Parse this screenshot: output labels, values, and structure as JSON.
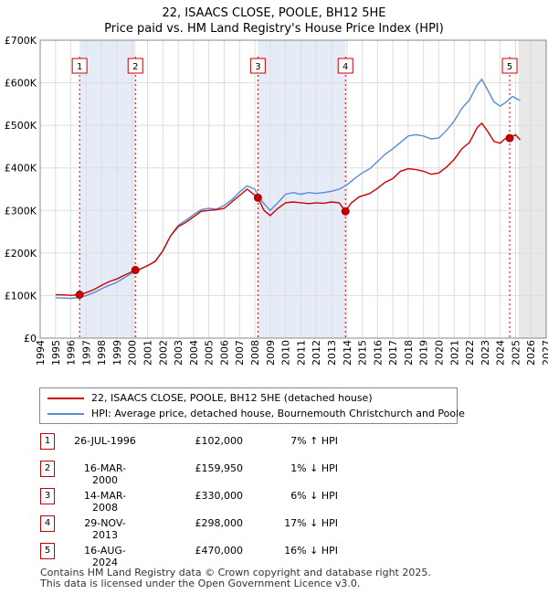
{
  "title": "22, ISAACS CLOSE, POOLE, BH12 5HE",
  "subtitle": "Price paid vs. HM Land Registry's House Price Index (HPI)",
  "chart_data": {
    "type": "line",
    "title": "22, ISAACS CLOSE, POOLE, BH12 5HE",
    "subtitle": "Price paid vs. HM Land Registry's House Price Index (HPI)",
    "xlim": [
      1994,
      2027
    ],
    "ylim": [
      0,
      700000
    ],
    "x_ticks": [
      "1994",
      "1995",
      "1996",
      "1997",
      "1998",
      "1999",
      "2000",
      "2001",
      "2002",
      "2003",
      "2004",
      "2005",
      "2006",
      "2007",
      "2008",
      "2009",
      "2010",
      "2011",
      "2012",
      "2013",
      "2014",
      "2015",
      "2016",
      "2017",
      "2018",
      "2019",
      "2020",
      "2021",
      "2022",
      "2023",
      "2024",
      "2025",
      "2026",
      "2027"
    ],
    "y_ticks": [
      {
        "value": 0,
        "label": "£0"
      },
      {
        "value": 100000,
        "label": "£100K"
      },
      {
        "value": 200000,
        "label": "£200K"
      },
      {
        "value": 300000,
        "label": "£300K"
      },
      {
        "value": 400000,
        "label": "£400K"
      },
      {
        "value": 500000,
        "label": "£500K"
      },
      {
        "value": 600000,
        "label": "£600K"
      },
      {
        "value": 700000,
        "label": "£700K"
      }
    ],
    "grid": true,
    "legend_position": "below",
    "shaded_periods": [
      [
        1996.57,
        2000.21
      ],
      [
        2008.2,
        2013.91
      ]
    ],
    "forecast_from": 2025.2,
    "series": [
      {
        "name": "22, ISAACS CLOSE, POOLE, BH12 5HE (detached house)",
        "color": "#cc0000",
        "points": [
          [
            1995.0,
            102000
          ],
          [
            1995.5,
            101500
          ],
          [
            1996.0,
            100500
          ],
          [
            1996.57,
            102000
          ],
          [
            1997.0,
            107000
          ],
          [
            1997.5,
            114000
          ],
          [
            1998.0,
            124000
          ],
          [
            1998.5,
            133000
          ],
          [
            1999.0,
            139000
          ],
          [
            1999.5,
            148000
          ],
          [
            2000.21,
            159950
          ],
          [
            2000.5,
            162000
          ],
          [
            2001.0,
            170000
          ],
          [
            2001.5,
            180000
          ],
          [
            2002.0,
            205000
          ],
          [
            2002.5,
            240000
          ],
          [
            2003.0,
            262000
          ],
          [
            2003.5,
            272000
          ],
          [
            2004.0,
            285000
          ],
          [
            2004.5,
            298000
          ],
          [
            2005.0,
            300000
          ],
          [
            2005.5,
            302000
          ],
          [
            2006.0,
            305000
          ],
          [
            2006.5,
            320000
          ],
          [
            2007.0,
            335000
          ],
          [
            2007.5,
            350000
          ],
          [
            2008.2,
            330000
          ],
          [
            2008.6,
            300000
          ],
          [
            2009.0,
            288000
          ],
          [
            2009.5,
            305000
          ],
          [
            2010.0,
            318000
          ],
          [
            2010.5,
            320000
          ],
          [
            2011.0,
            318000
          ],
          [
            2011.5,
            316000
          ],
          [
            2012.0,
            318000
          ],
          [
            2012.5,
            317000
          ],
          [
            2013.0,
            320000
          ],
          [
            2013.5,
            318000
          ],
          [
            2013.91,
            298000
          ],
          [
            2014.3,
            318000
          ],
          [
            2014.8,
            332000
          ],
          [
            2015.5,
            340000
          ],
          [
            2016.0,
            352000
          ],
          [
            2016.5,
            366000
          ],
          [
            2017.0,
            375000
          ],
          [
            2017.5,
            392000
          ],
          [
            2018.0,
            398000
          ],
          [
            2018.5,
            396000
          ],
          [
            2019.0,
            392000
          ],
          [
            2019.5,
            385000
          ],
          [
            2020.0,
            388000
          ],
          [
            2020.5,
            402000
          ],
          [
            2021.0,
            420000
          ],
          [
            2021.5,
            445000
          ],
          [
            2022.0,
            460000
          ],
          [
            2022.5,
            495000
          ],
          [
            2022.8,
            505000
          ],
          [
            2023.2,
            485000
          ],
          [
            2023.6,
            462000
          ],
          [
            2024.0,
            458000
          ],
          [
            2024.3,
            468000
          ],
          [
            2024.62,
            470000
          ],
          [
            2025.0,
            478000
          ],
          [
            2025.3,
            466000
          ]
        ]
      },
      {
        "name": "HPI: Average price, detached house, Bournemouth Christchurch and Poole",
        "color": "#5b8bd0",
        "points": [
          [
            1995.0,
            95000
          ],
          [
            1995.5,
            94000
          ],
          [
            1996.0,
            93500
          ],
          [
            1996.57,
            95500
          ],
          [
            1997.0,
            100000
          ],
          [
            1997.5,
            107000
          ],
          [
            1998.0,
            116000
          ],
          [
            1998.5,
            124000
          ],
          [
            1999.0,
            131000
          ],
          [
            1999.5,
            142000
          ],
          [
            2000.21,
            158000
          ],
          [
            2000.5,
            162000
          ],
          [
            2001.0,
            170000
          ],
          [
            2001.5,
            181000
          ],
          [
            2002.0,
            205000
          ],
          [
            2002.5,
            240000
          ],
          [
            2003.0,
            265000
          ],
          [
            2003.5,
            277000
          ],
          [
            2004.0,
            290000
          ],
          [
            2004.5,
            302000
          ],
          [
            2005.0,
            305000
          ],
          [
            2005.5,
            303000
          ],
          [
            2006.0,
            312000
          ],
          [
            2006.5,
            325000
          ],
          [
            2007.0,
            343000
          ],
          [
            2007.5,
            358000
          ],
          [
            2008.0,
            350000
          ],
          [
            2008.5,
            320000
          ],
          [
            2009.0,
            300000
          ],
          [
            2009.5,
            318000
          ],
          [
            2010.0,
            338000
          ],
          [
            2010.5,
            342000
          ],
          [
            2011.0,
            338000
          ],
          [
            2011.5,
            342000
          ],
          [
            2012.0,
            340000
          ],
          [
            2012.5,
            342000
          ],
          [
            2013.0,
            345000
          ],
          [
            2013.5,
            350000
          ],
          [
            2014.0,
            360000
          ],
          [
            2014.5,
            375000
          ],
          [
            2015.0,
            388000
          ],
          [
            2015.5,
            398000
          ],
          [
            2016.0,
            415000
          ],
          [
            2016.5,
            432000
          ],
          [
            2017.0,
            445000
          ],
          [
            2017.5,
            460000
          ],
          [
            2018.0,
            475000
          ],
          [
            2018.5,
            478000
          ],
          [
            2019.0,
            475000
          ],
          [
            2019.5,
            468000
          ],
          [
            2020.0,
            470000
          ],
          [
            2020.5,
            488000
          ],
          [
            2021.0,
            510000
          ],
          [
            2021.5,
            540000
          ],
          [
            2022.0,
            560000
          ],
          [
            2022.5,
            595000
          ],
          [
            2022.8,
            608000
          ],
          [
            2023.2,
            582000
          ],
          [
            2023.6,
            555000
          ],
          [
            2024.0,
            545000
          ],
          [
            2024.4,
            555000
          ],
          [
            2024.8,
            568000
          ],
          [
            2025.3,
            558000
          ]
        ]
      }
    ],
    "sales": [
      {
        "id": "1",
        "x": 1996.57,
        "price": 102000
      },
      {
        "id": "2",
        "x": 2000.21,
        "price": 159950
      },
      {
        "id": "3",
        "x": 2008.2,
        "price": 330000
      },
      {
        "id": "4",
        "x": 2013.91,
        "price": 298000
      },
      {
        "id": "5",
        "x": 2024.62,
        "price": 470000
      }
    ]
  },
  "legend": {
    "property": "22, ISAACS CLOSE, POOLE, BH12 5HE (detached house)",
    "hpi": "HPI: Average price, detached house, Bournemouth Christchurch and Poole",
    "property_color": "#cc0000",
    "hpi_color": "#5b8bd0"
  },
  "sales_table": [
    {
      "id": "1",
      "date": "26-JUL-1996",
      "price": "£102,000",
      "hpi": "7% ↑ HPI"
    },
    {
      "id": "2",
      "date": "16-MAR-2000",
      "price": "£159,950",
      "hpi": "1% ↓ HPI"
    },
    {
      "id": "3",
      "date": "14-MAR-2008",
      "price": "£330,000",
      "hpi": "6% ↓ HPI"
    },
    {
      "id": "4",
      "date": "29-NOV-2013",
      "price": "£298,000",
      "hpi": "17% ↓ HPI"
    },
    {
      "id": "5",
      "date": "16-AUG-2024",
      "price": "£470,000",
      "hpi": "16% ↓ HPI"
    }
  ],
  "footer": {
    "line1": "Contains HM Land Registry data © Crown copyright and database right 2025.",
    "line2": "This data is licensed under the Open Government Licence v3.0."
  }
}
